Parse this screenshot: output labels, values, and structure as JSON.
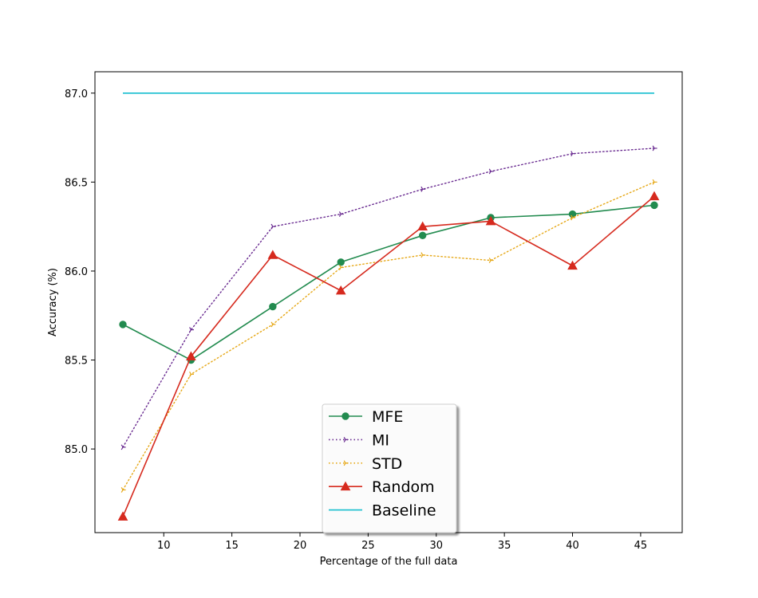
{
  "chart_data": {
    "type": "line",
    "title": "",
    "xlabel": "Percentage of the full data",
    "ylabel": "Accuracy (%)",
    "xlim": [
      4.95,
      48.05
    ],
    "ylim": [
      84.53,
      87.12
    ],
    "xticks": [
      10,
      15,
      20,
      25,
      30,
      35,
      40,
      45
    ],
    "yticks": [
      85.0,
      85.5,
      86.0,
      86.5,
      87.0
    ],
    "xtick_labels": [
      "10",
      "15",
      "20",
      "25",
      "30",
      "35",
      "40",
      "45"
    ],
    "ytick_labels": [
      "85.0",
      "85.5",
      "86.0",
      "86.5",
      "87.0"
    ],
    "legend_position": "lower-center",
    "grid": false,
    "series": [
      {
        "name": "MFE",
        "color": "#228b4f",
        "style": "solid",
        "marker": "circle",
        "x": [
          7,
          12,
          18,
          23,
          29,
          34,
          40,
          46
        ],
        "y": [
          85.7,
          85.5,
          85.8,
          86.05,
          86.2,
          86.3,
          86.32,
          86.37
        ]
      },
      {
        "name": "MI",
        "color": "#6a2c91",
        "style": "dotted",
        "marker": "tri-right",
        "x": [
          7,
          12,
          18,
          23,
          29,
          34,
          40,
          46
        ],
        "y": [
          85.01,
          85.67,
          86.25,
          86.32,
          86.46,
          86.56,
          86.66,
          86.69
        ]
      },
      {
        "name": "STD",
        "color": "#e6a817",
        "style": "dotted",
        "marker": "tri-right",
        "x": [
          7,
          12,
          18,
          23,
          29,
          34,
          40,
          46
        ],
        "y": [
          84.77,
          85.42,
          85.7,
          86.02,
          86.09,
          86.06,
          86.3,
          86.5
        ]
      },
      {
        "name": "Random",
        "color": "#d62a1e",
        "style": "solid",
        "marker": "triangle",
        "x": [
          7,
          12,
          18,
          23,
          29,
          34,
          40,
          46
        ],
        "y": [
          84.62,
          85.52,
          86.09,
          85.89,
          86.25,
          86.28,
          86.03,
          86.42
        ]
      },
      {
        "name": "Baseline",
        "color": "#17becf",
        "style": "solid",
        "marker": "none",
        "x": [
          7,
          46
        ],
        "y": [
          87.0,
          87.0
        ]
      }
    ]
  }
}
